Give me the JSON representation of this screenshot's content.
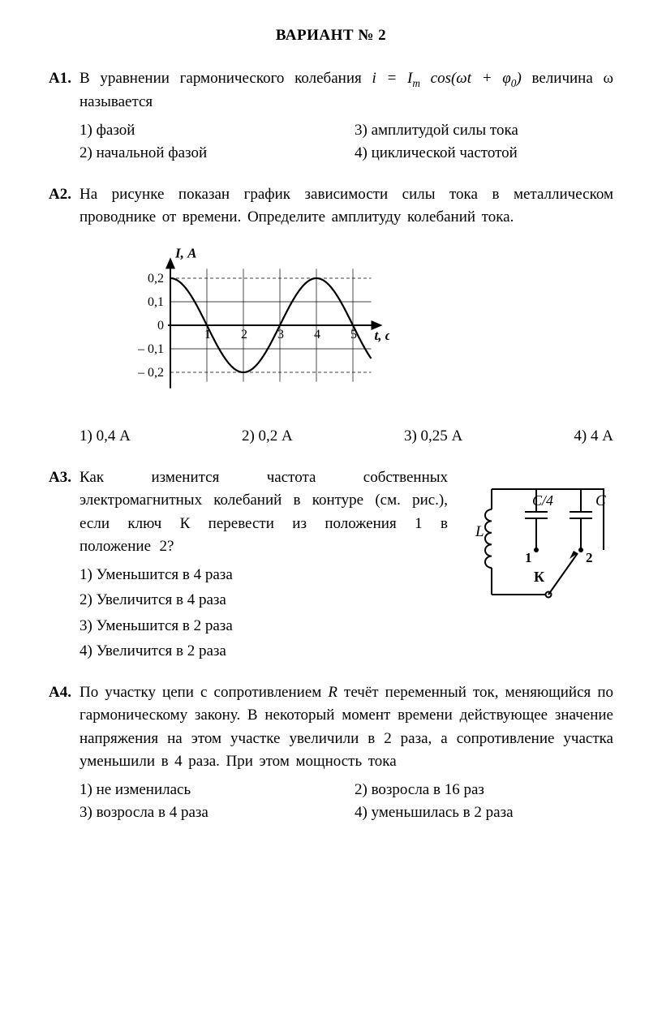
{
  "page": {
    "title": "ВАРИАНТ № 2"
  },
  "q1": {
    "num": "А1.",
    "text_pre": "В уравнении гармонического колебания ",
    "formula_i": "i = I",
    "formula_sub": "m",
    "formula_cos": " cos(ω",
    "formula_t": "t",
    "formula_plus": " + φ",
    "formula_sub0": "0",
    "formula_close": ")",
    "text_post": " величина ω называется",
    "opt1": "1) фазой",
    "opt2": "2) начальной фазой",
    "opt3": "3) амплитудой силы тока",
    "opt4": "4) циклической частотой"
  },
  "q2": {
    "num": "А2.",
    "text": "На рисунке показан график зависимости силы тока в металлическом проводнике от времени. Определите амплитуду колебаний тока.",
    "opt1": "1) 0,4 А",
    "opt2": "2) 0,2 А",
    "opt3": "3) 0,25 А",
    "opt4": "4) 4 А",
    "chart": {
      "type": "line",
      "y_label": "I, А",
      "x_label": "t, с",
      "y_ticks": [
        "0,2",
        "0,1",
        "0",
        "– 0,1",
        "– 0,2"
      ],
      "x_ticks": [
        "1",
        "2",
        "3",
        "4",
        "5"
      ],
      "ylim": [
        -0.24,
        0.24
      ],
      "xlim": [
        0,
        5.5
      ],
      "amplitude": 0.2,
      "line_color": "#000000",
      "line_width": 2.2,
      "grid_color": "#000000",
      "grid_width": 0.7,
      "background_color": "#ffffff",
      "axis_width": 2
    }
  },
  "q3": {
    "num": "А3.",
    "text": "Как изменится частота собственных электромагнитных колебаний в контуре (см. рис.), если ключ К перевести из положения 1 в положение 2?",
    "opt1": "1) Уменьшится в 4 раза",
    "opt2": "2) Увеличится в 4 раза",
    "opt3": "3) Уменьшится в 2 раза",
    "opt4": "4) Увеличится в 2 раза",
    "circuit": {
      "L_label": "L",
      "C1_label": "C/4",
      "C2_label": "C",
      "pos1": "1",
      "pos2": "2",
      "K_label": "К",
      "line_width": 2,
      "line_color": "#000000"
    }
  },
  "q4": {
    "num": "А4.",
    "text_pre": "По участку цепи с сопротивлением ",
    "R": "R",
    "text_post": " течёт переменный ток, меняющийся по гармоническому закону. В некоторый момент времени действующее значение напряжения на этом участке увеличили в 2 раза, а сопротивление участка уменьшили в 4 раза. При этом мощность тока",
    "opt1": "1) не изменилась",
    "opt2": "2) возросла в 16 раз",
    "opt3": "3) возросла в 4 раза",
    "opt4": "4) уменьшилась в 2 раза"
  }
}
